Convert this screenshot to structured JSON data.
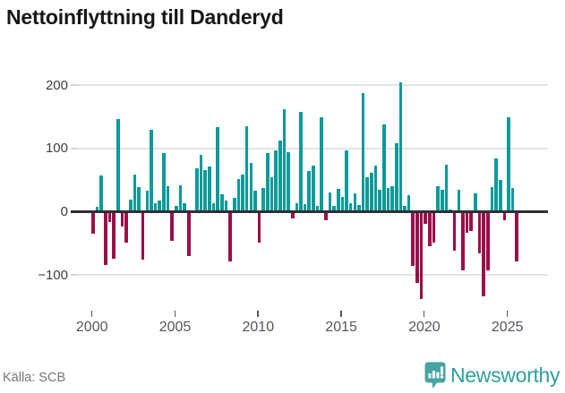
{
  "title": "Nettoinflyttning till Danderyd",
  "source": "Källa: SCB",
  "branding": {
    "logo_text": "Newsworthy",
    "logo_icon": "speech-bubble-bar-chart"
  },
  "colors": {
    "positive_bar": "#0d9a9a",
    "negative_bar": "#9c0d49",
    "zero_axis": "#2f2f33",
    "gridline": "#e4e4e6",
    "title_text": "#15171a",
    "axis_label": "#55555e",
    "source_text": "#76767f",
    "logo_teal": "#46a4a4"
  },
  "y_axis": {
    "tick_labels": [
      "200",
      "100",
      "0",
      "−100"
    ],
    "tick_values": [
      200,
      100,
      0,
      -100
    ]
  },
  "x_axis": {
    "tick_years": [
      2000,
      2005,
      2010,
      2015,
      2020,
      2025
    ]
  },
  "chart_data": {
    "type": "bar",
    "title": "Nettoinflyttning till Danderyd",
    "xlabel": "",
    "ylabel": "",
    "unit": "persons (net migration per quarter)",
    "frequency": "quarterly",
    "start_period": "2000-Q1",
    "end_period": "2025-Q3",
    "ylim": [
      -153,
      210
    ],
    "grid": "horizontal",
    "legend": "none",
    "positive_color": "#0d9a9a",
    "negative_color": "#9c0d49",
    "values": [
      -35,
      8,
      57,
      -84,
      -16,
      -74,
      146,
      -24,
      -49,
      19,
      58,
      39,
      -76,
      33,
      129,
      14,
      17,
      92,
      41,
      -46,
      9,
      42,
      13,
      -70,
      2,
      68,
      90,
      66,
      71,
      13,
      133,
      28,
      17,
      -78,
      22,
      52,
      58,
      135,
      77,
      33,
      -49,
      38,
      93,
      54,
      97,
      113,
      162,
      94,
      -11,
      14,
      158,
      12,
      64,
      73,
      9,
      149,
      -14,
      31,
      9,
      36,
      24,
      97,
      13,
      29,
      10,
      187,
      54,
      61,
      73,
      35,
      138,
      38,
      41,
      108,
      204,
      9,
      26,
      -85,
      -112,
      -138,
      -19,
      -55,
      -49,
      40,
      34,
      74,
      4,
      -61,
      35,
      -92,
      -33,
      -30,
      29,
      -66,
      -134,
      -92,
      39,
      84,
      50,
      -14,
      149,
      37,
      -79
    ]
  }
}
